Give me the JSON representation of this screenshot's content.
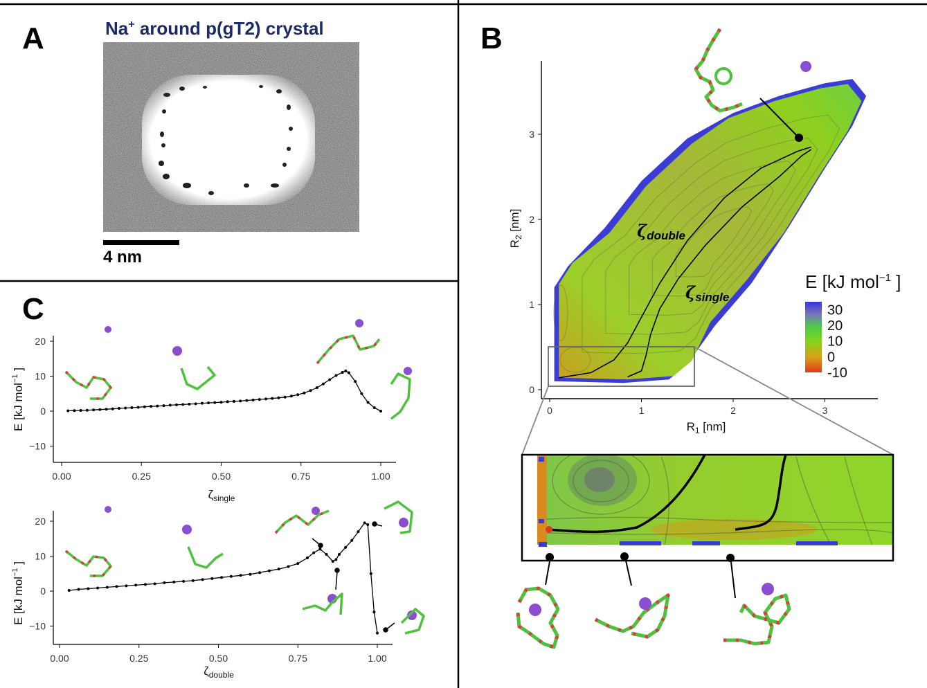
{
  "panel_a": {
    "label": "A",
    "title_pre": "Na",
    "title_sup": "+",
    "title_post": " around p(gT2) crystal",
    "scale_label": "4 nm"
  },
  "panel_b": {
    "label": "B",
    "zeta_double_sub": "double",
    "zeta_single_sub": "single",
    "legend_title": "E  [kJ mol",
    "legend_exp": "−1",
    "legend_close": " ]",
    "colors": {
      "low": "#d94a1e",
      "mid": "#8fd01f",
      "high": "#3a3ad8"
    }
  },
  "panel_c": {
    "label": "C",
    "ylabel": "E  [kJ mol",
    "ylabel_exp": "−1",
    "ylabel_close": " ]",
    "xlabel_top_sub": "single",
    "xlabel_bottom_sub": "double"
  },
  "chart_data": [
    {
      "id": "map",
      "type": "heatmap",
      "xlabel": "R",
      "xlabel_sub": "1",
      "xlabel_unit": " [nm]",
      "ylabel": "R",
      "ylabel_sub": "2",
      "ylabel_unit": " [nm]",
      "xlim": [
        -0.1,
        3.6
      ],
      "ylim": [
        -0.1,
        3.8
      ],
      "xticks": [
        0,
        1,
        2,
        3
      ],
      "yticks": [
        0,
        1,
        2,
        3
      ],
      "colorbar_ticks": [
        "30",
        "20",
        "10",
        "0",
        "-10"
      ],
      "colorbar_range": [
        -10,
        35
      ],
      "paths": [
        {
          "name": "ζdouble",
          "x": [
            0.1,
            0.45,
            0.7,
            0.85,
            1.0,
            1.2,
            1.5,
            1.9,
            2.3,
            2.7,
            2.85
          ],
          "y": [
            0.14,
            0.2,
            0.35,
            0.55,
            0.85,
            1.25,
            1.75,
            2.25,
            2.6,
            2.8,
            2.85
          ]
        },
        {
          "name": "ζsingle",
          "x": [
            0.85,
            1.0,
            1.05,
            1.1,
            1.2,
            1.4,
            1.7,
            2.1,
            2.5,
            2.75,
            2.85
          ],
          "y": [
            0.15,
            0.22,
            0.4,
            0.65,
            0.95,
            1.3,
            1.7,
            2.15,
            2.5,
            2.75,
            2.82
          ]
        }
      ]
    },
    {
      "id": "top",
      "type": "line",
      "xlabel": "ζ",
      "xlabel_sub": "single",
      "xlim": [
        0,
        1.05
      ],
      "ylim": [
        -15,
        22
      ],
      "xticks": [
        "0.00",
        "0.25",
        "0.50",
        "0.75",
        "1.00"
      ],
      "yticks": [
        "20",
        "10",
        "0",
        "−10"
      ],
      "x": [
        0.02,
        0.04,
        0.06,
        0.08,
        0.1,
        0.12,
        0.14,
        0.16,
        0.18,
        0.2,
        0.22,
        0.24,
        0.26,
        0.28,
        0.3,
        0.32,
        0.34,
        0.36,
        0.38,
        0.4,
        0.42,
        0.44,
        0.46,
        0.48,
        0.5,
        0.52,
        0.54,
        0.56,
        0.58,
        0.6,
        0.62,
        0.64,
        0.66,
        0.68,
        0.7,
        0.72,
        0.74,
        0.76,
        0.78,
        0.8,
        0.82,
        0.84,
        0.86,
        0.88,
        0.89,
        0.9,
        0.92,
        0.94,
        0.96,
        0.98,
        1.0
      ],
      "y": [
        0.1,
        0.15,
        0.2,
        0.25,
        0.35,
        0.45,
        0.55,
        0.65,
        0.8,
        0.9,
        1.0,
        1.1,
        1.25,
        1.35,
        1.45,
        1.55,
        1.7,
        1.8,
        1.9,
        2.0,
        2.1,
        2.25,
        2.35,
        2.45,
        2.55,
        2.7,
        2.8,
        2.9,
        3.05,
        3.2,
        3.35,
        3.5,
        3.65,
        3.8,
        4.0,
        4.3,
        4.7,
        5.2,
        5.9,
        6.7,
        7.8,
        9.0,
        10.2,
        11.1,
        11.5,
        11.0,
        8.5,
        5.0,
        2.5,
        1.0,
        0.0
      ]
    },
    {
      "id": "bottom",
      "type": "line",
      "xlabel": "ζ",
      "xlabel_sub": "double",
      "xlim": [
        0,
        1.05
      ],
      "ylim": [
        -15,
        22
      ],
      "xticks": [
        "0.00",
        "0.25",
        "0.50",
        "0.75",
        "1.00"
      ],
      "yticks": [
        "20",
        "10",
        "0",
        "−10"
      ],
      "x": [
        0.03,
        0.06,
        0.09,
        0.12,
        0.15,
        0.18,
        0.21,
        0.24,
        0.27,
        0.3,
        0.33,
        0.36,
        0.39,
        0.42,
        0.45,
        0.48,
        0.51,
        0.54,
        0.57,
        0.6,
        0.63,
        0.66,
        0.69,
        0.72,
        0.75,
        0.78,
        0.8,
        0.82,
        0.84,
        0.86,
        0.87,
        0.88,
        0.9,
        0.92,
        0.94,
        0.96,
        0.97,
        0.98,
        0.99,
        1.0
      ],
      "y": [
        0.2,
        0.5,
        0.7,
        0.9,
        1.1,
        1.3,
        1.5,
        1.7,
        1.9,
        2.1,
        2.4,
        2.6,
        2.8,
        3.0,
        3.3,
        3.6,
        3.9,
        4.2,
        4.5,
        4.8,
        5.3,
        5.8,
        6.3,
        7.0,
        7.9,
        9.5,
        11.0,
        12.0,
        10.5,
        8.5,
        9.0,
        10.5,
        12.5,
        14.5,
        17.0,
        19.5,
        19.0,
        5.0,
        -6.0,
        -12.0
      ]
    }
  ]
}
